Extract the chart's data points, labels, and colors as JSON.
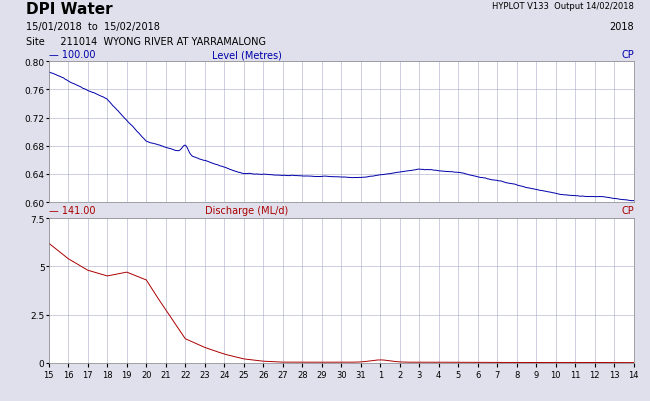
{
  "title": "DPI Water",
  "hyplot_text": "HYPLOT V133  Output 14/02/2018",
  "date_range": "15/01/2018  to  15/02/2018",
  "year": "2018",
  "site": "Site     211014  WYONG RIVER AT YARRAMALONG",
  "level_label": "Level (Metres)",
  "level_legend": "— 100.00",
  "discharge_label": "Discharge (ML/d)",
  "discharge_legend": "— 141.00",
  "cp_label": "CP",
  "level_color": "#0000AA",
  "discharge_color": "#AA0000",
  "background_color": "#E0E0EC",
  "plot_bg_color": "#FFFFFF",
  "grid_color": "#AAAACC",
  "level_ylim": [
    0.6,
    0.8
  ],
  "level_yticks": [
    0.6,
    0.64,
    0.68,
    0.72,
    0.76,
    0.8
  ],
  "discharge_ylim": [
    0.0,
    7.5
  ],
  "discharge_yticks": [
    0,
    2.5,
    5.0,
    7.5
  ],
  "x_tick_labels": [
    "15",
    "16",
    "17",
    "18",
    "19",
    "20",
    "21",
    "22",
    "23",
    "24",
    "25",
    "26",
    "27",
    "28",
    "29",
    "30",
    "31",
    "1",
    "2",
    "3",
    "4",
    "5",
    "6",
    "7",
    "8",
    "9",
    "10",
    "11",
    "12",
    "13",
    "14"
  ],
  "n_points": 1200
}
